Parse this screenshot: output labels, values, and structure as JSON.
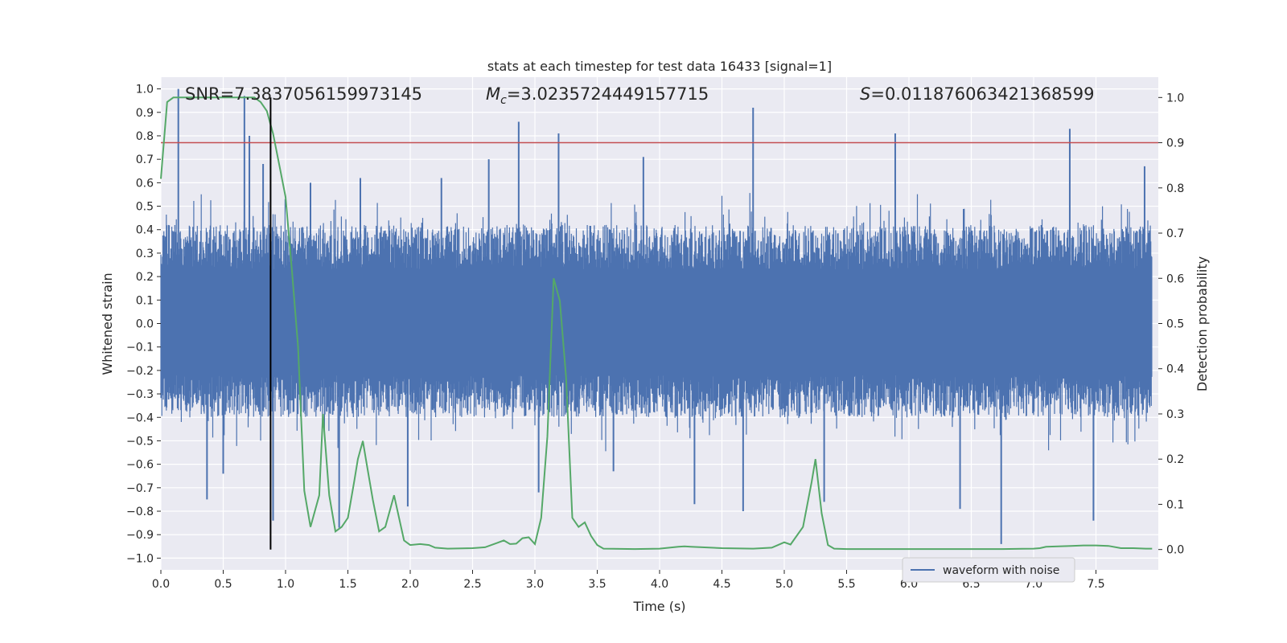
{
  "chart_data": {
    "type": "line",
    "title": "stats at each timestep for test data 16433 [signal=1]",
    "xlabel": "Time (s)",
    "ylabel_left": "Whitened strain",
    "ylabel_right": "Detection probability",
    "xlim": [
      0.0,
      8.0
    ],
    "ylim_left": [
      -1.05,
      1.05
    ],
    "ylim_right": [
      -0.045,
      1.045
    ],
    "x_ticks": [
      "0.0",
      "0.5",
      "1.0",
      "1.5",
      "2.0",
      "2.5",
      "3.0",
      "3.5",
      "4.0",
      "4.5",
      "5.0",
      "5.5",
      "6.0",
      "6.5",
      "7.0",
      "7.5"
    ],
    "y_left_ticks": [
      "1.0",
      "0.9",
      "0.8",
      "0.7",
      "0.6",
      "0.5",
      "0.4",
      "0.3",
      "0.2",
      "0.1",
      "0.0",
      "-0.1",
      "-0.2",
      "-0.3",
      "-0.4",
      "-0.5",
      "-0.6",
      "-0.7",
      "-0.8",
      "-0.9",
      "-1.0"
    ],
    "y_right_ticks": [
      "1.0",
      "0.9",
      "0.8",
      "0.7",
      "0.6",
      "0.5",
      "0.4",
      "0.3",
      "0.2",
      "0.1",
      "0.0"
    ],
    "grid": true,
    "legend_position": "lower-right",
    "colors": {
      "waveform": "#4c72b0",
      "probability": "#55a868",
      "threshold": "#c44e52",
      "marker": "#000000",
      "plot_bg": "#eaeaf2",
      "grid": "#ffffff"
    },
    "annotations": {
      "snr": "SNR=7.3837056159973145",
      "mc_symbol": "M",
      "mc_subscript": "c",
      "mc_value": "=3.0235724449157715",
      "s_symbol": "S",
      "s_value": "=0.011876063421368599"
    },
    "threshold_line": {
      "axis": "right",
      "y": 0.9
    },
    "marker_line": {
      "x": 0.88,
      "y_from": 0.0,
      "y_to": 1.0,
      "axis": "right"
    },
    "series": [
      {
        "name": "waveform with noise",
        "axis": "left",
        "type": "noise-envelope",
        "envelope_positive": 0.42,
        "envelope_negative": -0.4,
        "peaks": [
          {
            "x": 0.14,
            "y": 1.0
          },
          {
            "x": 0.37,
            "y": -0.75
          },
          {
            "x": 0.5,
            "y": -0.64
          },
          {
            "x": 0.67,
            "y": 0.97
          },
          {
            "x": 0.71,
            "y": 0.8
          },
          {
            "x": 0.82,
            "y": 0.68
          },
          {
            "x": 0.9,
            "y": -0.84
          },
          {
            "x": 1.2,
            "y": 0.6
          },
          {
            "x": 1.43,
            "y": -0.87
          },
          {
            "x": 1.6,
            "y": 0.62
          },
          {
            "x": 1.98,
            "y": -0.78
          },
          {
            "x": 2.25,
            "y": 0.62
          },
          {
            "x": 2.63,
            "y": 0.7
          },
          {
            "x": 2.87,
            "y": 0.86
          },
          {
            "x": 3.03,
            "y": -0.72
          },
          {
            "x": 3.19,
            "y": 0.81
          },
          {
            "x": 3.63,
            "y": -0.63
          },
          {
            "x": 3.87,
            "y": 0.71
          },
          {
            "x": 4.28,
            "y": -0.77
          },
          {
            "x": 4.67,
            "y": -0.8
          },
          {
            "x": 4.75,
            "y": 0.92
          },
          {
            "x": 5.32,
            "y": -0.76
          },
          {
            "x": 5.89,
            "y": 0.81
          },
          {
            "x": 6.41,
            "y": -0.79
          },
          {
            "x": 6.74,
            "y": -0.94
          },
          {
            "x": 7.29,
            "y": 0.83
          },
          {
            "x": 7.48,
            "y": -0.84
          },
          {
            "x": 7.89,
            "y": 0.67
          }
        ]
      },
      {
        "name": "",
        "axis": "right",
        "x": [
          0.0,
          0.05,
          0.1,
          0.15,
          0.2,
          0.3,
          0.4,
          0.5,
          0.6,
          0.7,
          0.75,
          0.8,
          0.85,
          0.88,
          0.9,
          0.95,
          1.0,
          1.05,
          1.1,
          1.15,
          1.2,
          1.27,
          1.3,
          1.35,
          1.4,
          1.45,
          1.5,
          1.55,
          1.58,
          1.62,
          1.65,
          1.7,
          1.75,
          1.8,
          1.87,
          1.95,
          2.0,
          2.08,
          2.15,
          2.2,
          2.3,
          2.5,
          2.6,
          2.7,
          2.75,
          2.8,
          2.85,
          2.9,
          2.95,
          3.0,
          3.05,
          3.1,
          3.15,
          3.2,
          3.25,
          3.3,
          3.35,
          3.4,
          3.45,
          3.5,
          3.55,
          3.8,
          4.0,
          4.15,
          4.2,
          4.25,
          4.5,
          4.75,
          4.9,
          4.95,
          5.0,
          5.05,
          5.15,
          5.22,
          5.25,
          5.3,
          5.35,
          5.4,
          5.5,
          6.0,
          6.5,
          6.75,
          7.0,
          7.05,
          7.1,
          7.2,
          7.3,
          7.4,
          7.5,
          7.6,
          7.7,
          7.8,
          7.9,
          7.95
        ],
        "values": [
          0.82,
          0.99,
          1.0,
          1.0,
          1.0,
          1.0,
          1.0,
          1.0,
          1.0,
          1.0,
          1.0,
          0.99,
          0.97,
          0.94,
          0.92,
          0.85,
          0.78,
          0.62,
          0.45,
          0.13,
          0.05,
          0.12,
          0.3,
          0.12,
          0.04,
          0.05,
          0.07,
          0.15,
          0.2,
          0.24,
          0.19,
          0.11,
          0.04,
          0.05,
          0.12,
          0.02,
          0.01,
          0.012,
          0.01,
          0.004,
          0.002,
          0.003,
          0.005,
          0.015,
          0.02,
          0.012,
          0.013,
          0.025,
          0.027,
          0.012,
          0.07,
          0.25,
          0.6,
          0.55,
          0.38,
          0.07,
          0.05,
          0.06,
          0.03,
          0.01,
          0.002,
          0.001,
          0.002,
          0.006,
          0.007,
          0.006,
          0.003,
          0.002,
          0.004,
          0.01,
          0.016,
          0.011,
          0.05,
          0.15,
          0.2,
          0.08,
          0.01,
          0.002,
          0.001,
          0.001,
          0.001,
          0.001,
          0.002,
          0.003,
          0.006,
          0.007,
          0.008,
          0.009,
          0.009,
          0.008,
          0.003,
          0.003,
          0.002,
          0.002
        ]
      }
    ]
  }
}
